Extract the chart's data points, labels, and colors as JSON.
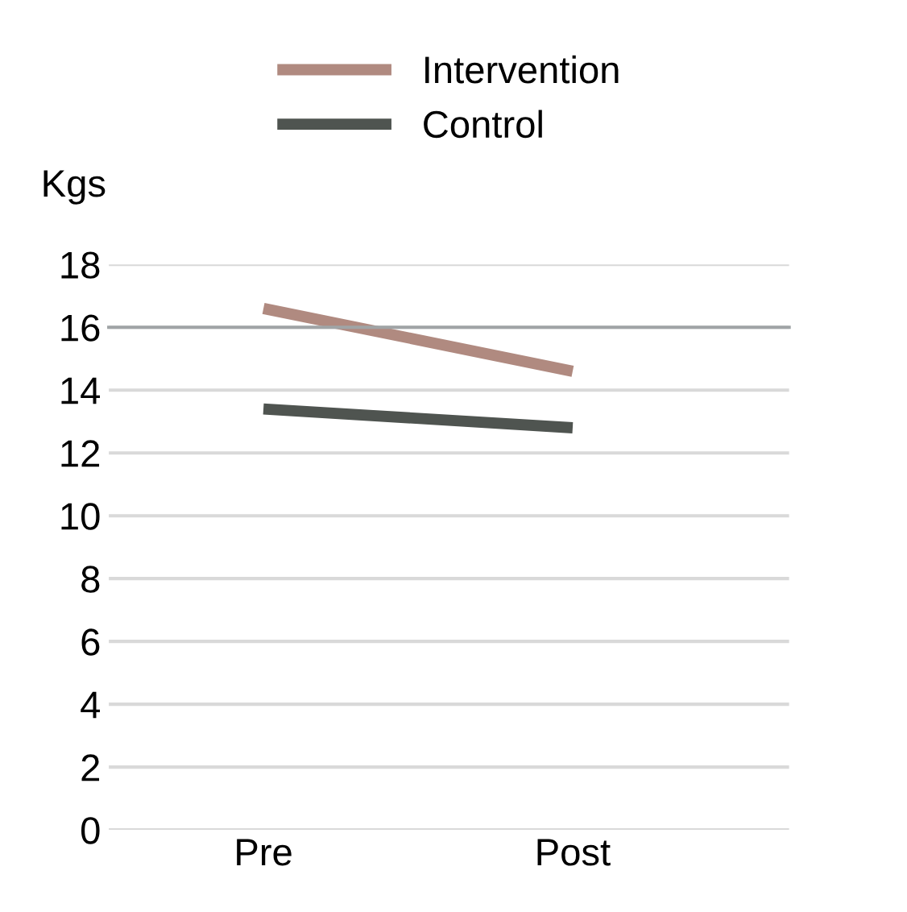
{
  "chart_data": {
    "type": "line",
    "ylabel": "Kgs",
    "categories": [
      "Pre",
      "Post"
    ],
    "series": [
      {
        "name": "Intervention",
        "color": "#b08a80",
        "values": [
          16.6,
          14.6
        ]
      },
      {
        "name": "Control",
        "color": "#4f5450",
        "values": [
          13.4,
          12.8
        ]
      }
    ],
    "ylim": [
      0,
      18
    ],
    "yticks": [
      0,
      2,
      4,
      6,
      8,
      10,
      12,
      14,
      16,
      18
    ],
    "grid": "y",
    "legend": "top",
    "marker": "none",
    "line_style": "solid",
    "ref_lines": [
      {
        "axis": "y",
        "value": 16,
        "color": "#a0a4a6"
      }
    ]
  }
}
